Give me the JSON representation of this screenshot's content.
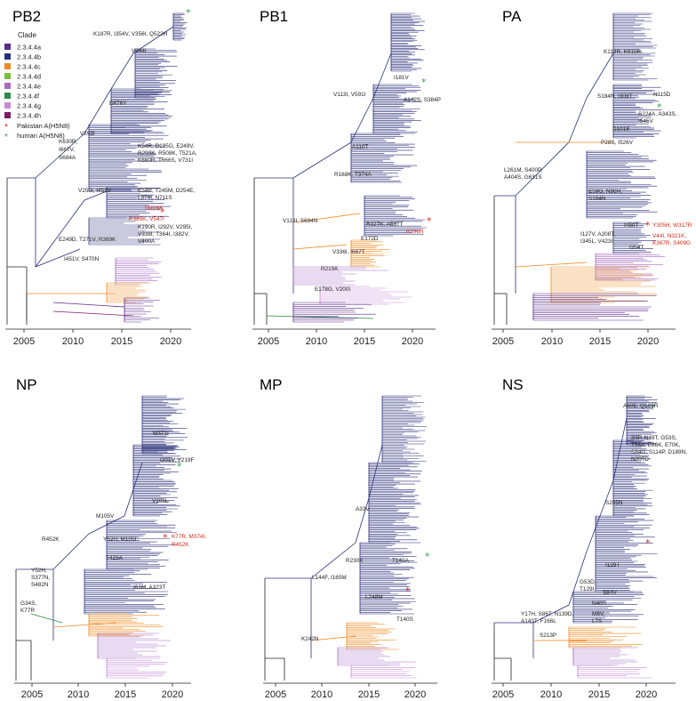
{
  "colors": {
    "clade_2.3.4.4a": "#5b2a8a",
    "clade_2.3.4.4b": "#2b2f7a",
    "clade_2.3.4.4c": "#f08a1e",
    "clade_2.3.4.4d": "#7bbf3a",
    "clade_2.3.4.4e": "#a56ac2",
    "clade_2.3.4.4f": "#2f8a4a",
    "clade_2.3.4.4g": "#c78ad8",
    "clade_2.3.4.4h": "#7a1f6a",
    "pakistan_star": "#d42a1a",
    "human_star": "#2aa24a",
    "black": "#222222"
  },
  "legend": {
    "title": "Clade",
    "items": [
      {
        "label": "2.3.4.4a",
        "color": "#5b2a8a"
      },
      {
        "label": "2.3.4.4b",
        "color": "#2b2f7a"
      },
      {
        "label": "2.3.4.4c",
        "color": "#f08a1e"
      },
      {
        "label": "2.3.4.4d",
        "color": "#7bbf3a"
      },
      {
        "label": "2.3.4.4e",
        "color": "#a56ac2"
      },
      {
        "label": "2.3.4.4f",
        "color": "#2f8a4a"
      },
      {
        "label": "2.3.4.4g",
        "color": "#c78ad8"
      },
      {
        "label": "2.3.4.4h",
        "color": "#7a1f6a"
      }
    ],
    "stars": [
      {
        "label": "Pakistan A(H5N8)",
        "color": "#d42a1a"
      },
      {
        "label": "human A(H5N8)",
        "color": "#2aa24a"
      }
    ]
  },
  "axis_years": [
    "2005",
    "2010",
    "2015",
    "2020"
  ],
  "panels": [
    {
      "title": "PB2",
      "mutations": [
        {
          "text": "K187R, I354V, V356I, Q522H",
          "red": false
        },
        {
          "text": "V344I",
          "red": false
        },
        {
          "text": "D676Y",
          "red": false
        },
        {
          "text": "V292I",
          "red": false
        },
        {
          "text": "K630R,",
          "red": false
        },
        {
          "text": "I667V,",
          "red": false
        },
        {
          "text": "S684A",
          "red": false
        },
        {
          "text": "K54R, D195G, E249V,",
          "red": false
        },
        {
          "text": "R299K, R508K, T521A,",
          "red": false
        },
        {
          "text": "K660R, T666S, V731I",
          "red": false
        },
        {
          "text": "V255I, I451V",
          "red": false
        },
        {
          "text": "K54R, T245M, D254E,",
          "red": false
        },
        {
          "text": "L374I, N711S",
          "red": false
        },
        {
          "text": "T683M",
          "red": true
        },
        {
          "text": "R389K, V547I",
          "red": true
        },
        {
          "text": "E249D, T271V, R389K",
          "red": false
        },
        {
          "text": "K190R, I292V, V295I,",
          "red": false
        },
        {
          "text": "V338I, T364I, I382V,",
          "red": false
        },
        {
          "text": "V400A",
          "red": false
        },
        {
          "text": "I451V, S470N",
          "red": false
        }
      ]
    },
    {
      "title": "PB1",
      "mutations": [
        {
          "text": "I181V",
          "red": false
        },
        {
          "text": "V113I, V591I",
          "red": false
        },
        {
          "text": "A142S, S384P",
          "red": false
        },
        {
          "text": "A110T",
          "red": false
        },
        {
          "text": "R168K, T374A",
          "red": false
        },
        {
          "text": "V113I, S694N",
          "red": false
        },
        {
          "text": "R327K, A587T",
          "red": false
        },
        {
          "text": "K198R",
          "red": true
        },
        {
          "text": "E172D",
          "red": false
        },
        {
          "text": "V336I, I667T",
          "red": false
        },
        {
          "text": "R215K",
          "red": false
        },
        {
          "text": "E178G, V200I",
          "red": false
        }
      ]
    },
    {
      "title": "PA",
      "mutations": [
        {
          "text": "K113R, K615R",
          "red": false
        },
        {
          "text": "S184N, I308T",
          "red": false
        },
        {
          "text": "N115D",
          "red": false
        },
        {
          "text": "S224A, A343S,",
          "red": false
        },
        {
          "text": "I545V",
          "red": false
        },
        {
          "text": "D101E",
          "red": false
        },
        {
          "text": "P28S, I526V",
          "red": false
        },
        {
          "text": "L261M, S400P,",
          "red": false
        },
        {
          "text": "A404S, G631S",
          "red": false
        },
        {
          "text": "E59G, N96H,",
          "red": false
        },
        {
          "text": "S184N",
          "red": false
        },
        {
          "text": "I450T",
          "red": false
        },
        {
          "text": "Y305H, W317R",
          "red": true
        },
        {
          "text": "I127V, A208T,",
          "red": false
        },
        {
          "text": "I345L, V423I",
          "red": false
        },
        {
          "text": "V44I, N321K,",
          "red": true
        },
        {
          "text": "K367R, S409G",
          "red": true
        },
        {
          "text": "I354T",
          "red": false
        }
      ]
    },
    {
      "title": "NP",
      "mutations": [
        {
          "text": "M371I",
          "red": false
        },
        {
          "text": "I201V, Y219F",
          "red": false
        },
        {
          "text": "V105L",
          "red": false
        },
        {
          "text": "M105V",
          "red": false
        },
        {
          "text": "R452K",
          "red": false
        },
        {
          "text": "Y52H, M105I",
          "red": false
        },
        {
          "text": "K77R, M374I,",
          "red": true
        },
        {
          "text": "R452K",
          "red": true
        },
        {
          "text": "T423A",
          "red": false
        },
        {
          "text": "Y52H,",
          "red": false
        },
        {
          "text": "S377N,",
          "red": false
        },
        {
          "text": "S482N",
          "red": false
        },
        {
          "text": "I61M, A323T",
          "red": false
        },
        {
          "text": "G34S,",
          "red": false
        },
        {
          "text": "K77R",
          "red": false
        }
      ]
    },
    {
      "title": "MP",
      "mutations": [
        {
          "text": "A33V",
          "red": false
        },
        {
          "text": "R230K",
          "red": false
        },
        {
          "text": "T140A",
          "red": false
        },
        {
          "text": "L144F, I165M",
          "red": false
        },
        {
          "text": "L248M",
          "red": false
        },
        {
          "text": "T140S",
          "red": false
        },
        {
          "text": "K242N",
          "red": false
        }
      ]
    },
    {
      "title": "NS",
      "mutations": [
        {
          "text": "A60E, Q109R",
          "red": false
        },
        {
          "text": "S3P, N48T, G53S,",
          "red": false
        },
        {
          "text": "T56A, E66K, E70K,",
          "red": false
        },
        {
          "text": "S84G, S114P, D189N,",
          "red": false
        },
        {
          "text": "N207D",
          "red": false
        },
        {
          "text": "S205N",
          "red": false
        },
        {
          "text": "I129T",
          "red": false
        },
        {
          "text": "G53D,",
          "red": false
        },
        {
          "text": "T129I",
          "red": false
        },
        {
          "text": "S84V",
          "red": false
        },
        {
          "text": "N48S",
          "red": false
        },
        {
          "text": "Y17H, S86T, N139D,",
          "red": false
        },
        {
          "text": "A143T, F166L",
          "red": false
        },
        {
          "text": "M6V,",
          "red": false
        },
        {
          "text": "L7S",
          "red": false
        },
        {
          "text": "S213P",
          "red": false
        }
      ]
    }
  ]
}
